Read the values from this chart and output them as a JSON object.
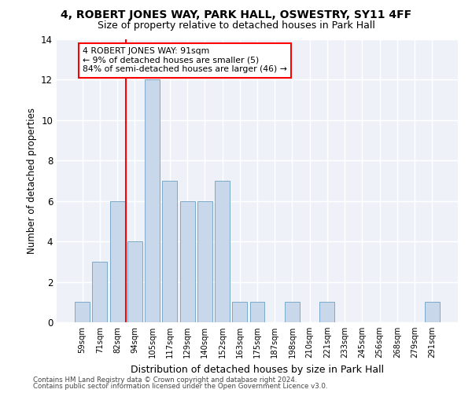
{
  "title1": "4, ROBERT JONES WAY, PARK HALL, OSWESTRY, SY11 4FF",
  "title2": "Size of property relative to detached houses in Park Hall",
  "xlabel": "Distribution of detached houses by size in Park Hall",
  "ylabel": "Number of detached properties",
  "categories": [
    "59sqm",
    "71sqm",
    "82sqm",
    "94sqm",
    "105sqm",
    "117sqm",
    "129sqm",
    "140sqm",
    "152sqm",
    "163sqm",
    "175sqm",
    "187sqm",
    "198sqm",
    "210sqm",
    "221sqm",
    "233sqm",
    "245sqm",
    "256sqm",
    "268sqm",
    "279sqm",
    "291sqm"
  ],
  "values": [
    1,
    3,
    6,
    4,
    12,
    7,
    6,
    6,
    7,
    1,
    1,
    0,
    1,
    0,
    1,
    0,
    0,
    0,
    0,
    0,
    1
  ],
  "bar_color": "#c8d8ea",
  "bar_edgecolor": "#7aaac8",
  "vline_x_index": 2.5,
  "vline_color": "red",
  "annotation_text": "4 ROBERT JONES WAY: 91sqm\n← 9% of detached houses are smaller (5)\n84% of semi-detached houses are larger (46) →",
  "annotation_box_color": "white",
  "annotation_box_edgecolor": "red",
  "ylim": [
    0,
    14
  ],
  "yticks": [
    0,
    2,
    4,
    6,
    8,
    10,
    12,
    14
  ],
  "background_color": "#eef2f8",
  "grid_color": "white",
  "title_fontsize": 10,
  "subtitle_fontsize": 9,
  "footnote1": "Contains HM Land Registry data © Crown copyright and database right 2024.",
  "footnote2": "Contains public sector information licensed under the Open Government Licence v3.0."
}
